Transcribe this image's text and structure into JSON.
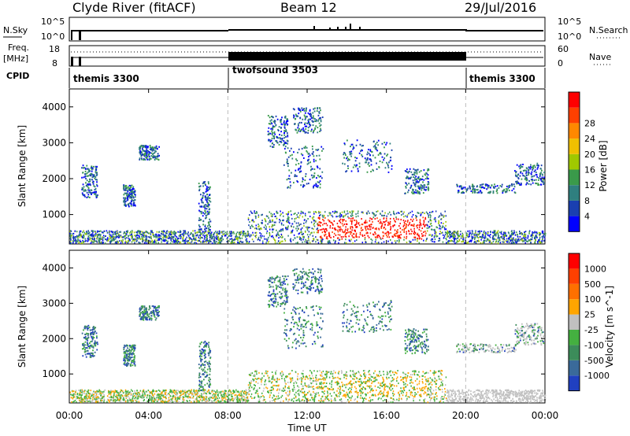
{
  "header": {
    "title": "Clyde River (fitACF)",
    "beam": "Beam 12",
    "date": "29/Jul/2016"
  },
  "colors": {
    "axis": "#000000",
    "power_scale": [
      "#0000ff",
      "#1a3fb0",
      "#2f7f7f",
      "#3a9a4a",
      "#a0c800",
      "#f0c000",
      "#ff8800",
      "#ff4000",
      "#ff0000"
    ],
    "velocity_scale": [
      "#2040c0",
      "#3a6a9a",
      "#3c8c5a",
      "#44b040",
      "#c0c0c0",
      "#ffa500",
      "#ff7000",
      "#ff4000",
      "#ff0000"
    ]
  },
  "chart_data": [
    {
      "name": "housekeeping-nsky-nsearch",
      "type": "line",
      "left_label": "N.Sky",
      "right_label": "N.Search",
      "left_ticks": [
        "10^5",
        "10^0"
      ],
      "right_ticks": [
        "10^5",
        "10^0"
      ]
    },
    {
      "name": "housekeeping-freq-nave",
      "type": "line",
      "left_label_line1": "Freq.",
      "left_label_line2": "[MHz]",
      "right_label": "Nave",
      "left_ticks": [
        "18",
        "8"
      ],
      "right_ticks": [
        "60",
        "0"
      ]
    },
    {
      "name": "cpid",
      "type": "table",
      "label": "CPID",
      "segments": [
        {
          "start_hour": 0,
          "end_hour": 8,
          "label": "themis 3300"
        },
        {
          "start_hour": 8,
          "end_hour": 20,
          "label": "twofsound 3503"
        },
        {
          "start_hour": 20,
          "end_hour": 24,
          "label": "themis 3300"
        }
      ]
    },
    {
      "name": "power",
      "type": "heatmap",
      "ylabel": "Slant Range [km]",
      "xlim": [
        0,
        24
      ],
      "ylim": [
        180,
        4500
      ],
      "y_ticks": [
        1000,
        2000,
        3000,
        4000
      ],
      "colorbar_label": "Power [dB]",
      "colorbar_ticks": [
        "4",
        "8",
        "12",
        "16",
        "20",
        "24",
        "28"
      ]
    },
    {
      "name": "velocity",
      "type": "heatmap",
      "ylabel": "Slant Range [km]",
      "xlabel": "Time UT",
      "xlim": [
        0,
        24
      ],
      "ylim": [
        180,
        4500
      ],
      "y_ticks": [
        1000,
        2000,
        3000,
        4000
      ],
      "x_ticks": [
        "00:00",
        "04:00",
        "08:00",
        "12:00",
        "16:00",
        "20:00",
        "00:00"
      ],
      "colorbar_label": "Velocity [m s^-1]",
      "colorbar_ticks": [
        "1000",
        "500",
        "100",
        "25",
        "-25",
        "-100",
        "-500",
        "-1000"
      ]
    }
  ]
}
